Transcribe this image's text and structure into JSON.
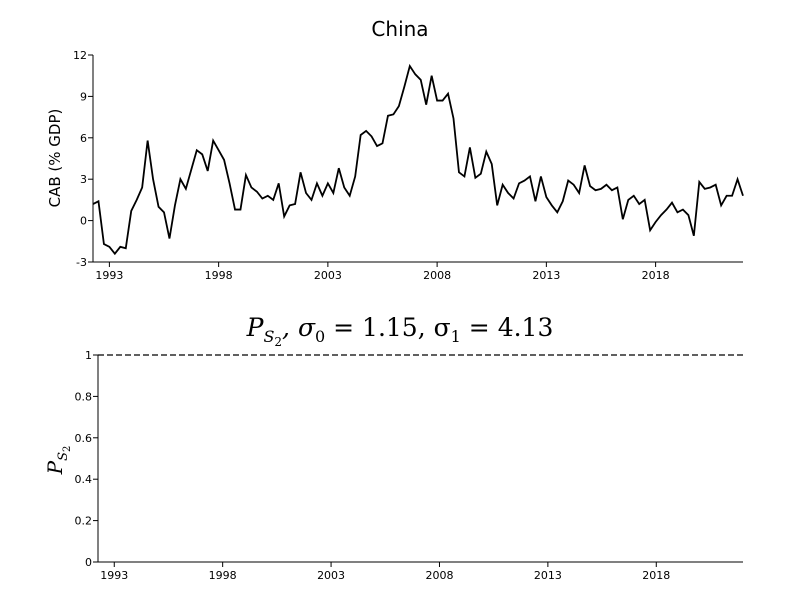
{
  "chart_data": [
    {
      "type": "line",
      "title": "China",
      "ylabel": "CAB (% GDP)",
      "x": [
        1992.25,
        1992.5,
        1992.75,
        1993,
        1993.25,
        1993.5,
        1993.75,
        1994,
        1994.25,
        1994.5,
        1994.75,
        1995,
        1995.25,
        1995.5,
        1995.75,
        1996,
        1996.25,
        1996.5,
        1996.75,
        1997,
        1997.25,
        1997.5,
        1997.75,
        1998,
        1998.25,
        1998.5,
        1998.75,
        1999,
        1999.25,
        1999.5,
        1999.75,
        2000,
        2000.25,
        2000.5,
        2000.75,
        2001,
        2001.25,
        2001.5,
        2001.75,
        2002,
        2002.25,
        2002.5,
        2002.75,
        2003,
        2003.25,
        2003.5,
        2003.75,
        2004,
        2004.25,
        2004.5,
        2004.75,
        2005,
        2005.25,
        2005.5,
        2005.75,
        2006,
        2006.25,
        2006.5,
        2006.75,
        2007,
        2007.25,
        2007.5,
        2007.75,
        2008,
        2008.25,
        2008.5,
        2008.75,
        2009,
        2009.25,
        2009.5,
        2009.75,
        2010,
        2010.25,
        2010.5,
        2010.75,
        2011,
        2011.25,
        2011.5,
        2011.75,
        2012,
        2012.25,
        2012.5,
        2012.75,
        2013,
        2013.25,
        2013.5,
        2013.75,
        2014,
        2014.25,
        2014.5,
        2014.75,
        2015,
        2015.25,
        2015.5,
        2015.75,
        2016,
        2016.25,
        2016.5,
        2016.75,
        2017,
        2017.25,
        2017.5,
        2017.75,
        2018,
        2018.25,
        2018.5,
        2018.75,
        2019,
        2019.25,
        2019.5,
        2019.75,
        2020,
        2020.25,
        2020.5,
        2020.75,
        2021,
        2021.25,
        2021.5,
        2021.75,
        2022
      ],
      "series": [
        {
          "color": "#000000",
          "values": [
            1.2,
            1.4,
            -1.7,
            -1.9,
            -2.4,
            -1.9,
            -2.0,
            0.7,
            1.5,
            2.4,
            5.8,
            3.0,
            1.0,
            0.6,
            -1.3,
            1.1,
            3.0,
            2.3,
            3.7,
            5.1,
            4.8,
            3.6,
            5.8,
            5.1,
            4.4,
            2.7,
            0.8,
            0.8,
            3.3,
            2.4,
            2.1,
            1.6,
            1.8,
            1.5,
            2.7,
            0.3,
            1.1,
            1.2,
            3.5,
            2.0,
            1.5,
            2.7,
            1.8,
            2.7,
            2.0,
            3.8,
            2.4,
            1.8,
            3.2,
            6.2,
            6.5,
            6.1,
            5.4,
            5.6,
            7.6,
            7.7,
            8.3,
            9.7,
            11.2,
            10.6,
            10.2,
            8.4,
            10.5,
            8.7,
            8.7,
            9.2,
            7.4,
            3.5,
            3.2,
            5.3,
            3.1,
            3.4,
            5.0,
            4.1,
            1.1,
            2.6,
            2.0,
            1.6,
            2.7,
            2.9,
            3.2,
            1.4,
            3.2,
            1.7,
            1.1,
            0.6,
            1.4,
            2.9,
            2.6,
            2.0,
            4.0,
            2.5,
            2.2,
            2.3,
            2.6,
            2.2,
            2.4,
            0.1,
            1.5,
            1.8,
            1.2,
            1.5,
            -0.7,
            -0.1,
            0.4,
            0.8,
            1.3,
            0.6,
            0.8,
            0.4,
            -1.1,
            2.8,
            2.3,
            2.4,
            2.6,
            1.1,
            1.8,
            1.8,
            3.0,
            1.8
          ]
        }
      ],
      "xlim": [
        1992.25,
        2022
      ],
      "xticks": [
        1993,
        1998,
        2003,
        2008,
        2013,
        2018
      ],
      "ylim": [
        -3,
        12
      ],
      "yticks": [
        -3,
        0,
        3,
        6,
        9,
        12
      ]
    },
    {
      "type": "line",
      "title": [
        "P",
        "S",
        "2",
        ", σ",
        "0",
        " = 1.15, σ",
        "1",
        " = 4.13"
      ],
      "ylabel": [
        "P",
        "S",
        "2"
      ],
      "x": [
        1992.25,
        2022
      ],
      "series": [
        {
          "color": "#000000",
          "linestyle": "dashed",
          "values": [
            1,
            1
          ]
        }
      ],
      "xlim": [
        1992.25,
        2022
      ],
      "xticks": [
        1993,
        1998,
        2003,
        2008,
        2013,
        2018
      ],
      "ylim": [
        0,
        1
      ],
      "yticks": [
        0,
        0.2,
        0.4,
        0.6,
        0.8,
        1
      ]
    }
  ]
}
